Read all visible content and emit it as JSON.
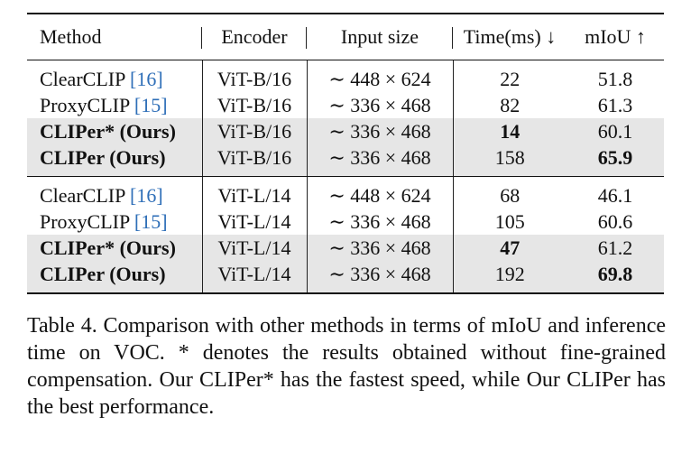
{
  "table": {
    "headers": {
      "method": "Method",
      "encoder": "Encoder",
      "input_size": "Input size",
      "time": "Time(ms) ↓",
      "miou": "mIoU ↑"
    },
    "group1": [
      {
        "method": "ClearCLIP",
        "cite": "[16]",
        "encoder": "ViT-B/16",
        "size": "∼ 448 × 624",
        "time": "22",
        "miou": "51.8"
      },
      {
        "method": "ProxyCLIP",
        "cite": "[15]",
        "encoder": "ViT-B/16",
        "size": "∼ 336 × 468",
        "time": "82",
        "miou": "61.3"
      },
      {
        "method": "CLIPer* (Ours)",
        "encoder": "ViT-B/16",
        "size": "∼ 336 × 468",
        "time": "14",
        "miou": "60.1"
      },
      {
        "method": "CLIPer (Ours)",
        "encoder": "ViT-B/16",
        "size": "∼ 336 × 468",
        "time": "158",
        "miou": "65.9"
      }
    ],
    "group2": [
      {
        "method": "ClearCLIP",
        "cite": "[16]",
        "encoder": "ViT-L/14",
        "size": "∼ 448 × 624",
        "time": "68",
        "miou": "46.1"
      },
      {
        "method": "ProxyCLIP",
        "cite": "[15]",
        "encoder": "ViT-L/14",
        "size": "∼ 336 × 468",
        "time": "105",
        "miou": "60.6"
      },
      {
        "method": "CLIPer* (Ours)",
        "encoder": "ViT-L/14",
        "size": "∼ 336 × 468",
        "time": "47",
        "miou": "61.2"
      },
      {
        "method": "CLIPer (Ours)",
        "encoder": "ViT-L/14",
        "size": "∼ 336 × 468",
        "time": "192",
        "miou": "69.8"
      }
    ]
  },
  "caption": "Table 4. Comparison with other methods in terms of mIoU and inference time on VOC. * denotes the results obtained without fine-grained compensation. Our CLIPer* has the fastest speed, while Our CLIPer has the best performance."
}
